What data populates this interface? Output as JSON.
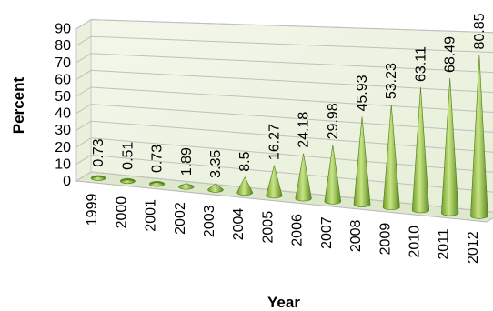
{
  "chart_data": {
    "type": "bar",
    "style": "3d-cone",
    "categories": [
      "1999",
      "2000",
      "2001",
      "2002",
      "2003",
      "2004",
      "2005",
      "2006",
      "2007",
      "2008",
      "2009",
      "2010",
      "2011",
      "2012"
    ],
    "values": [
      0.73,
      0.51,
      0.73,
      1.89,
      3.35,
      8.5,
      16.27,
      24.18,
      29.98,
      45.93,
      53.23,
      63.11,
      68.49,
      80.85
    ],
    "data_labels": [
      "0.73",
      "0.51",
      "0.73",
      "1.89",
      "3.35",
      "8.5",
      "16.27",
      "24.18",
      "29.98",
      "45.93",
      "53.23",
      "63.11",
      "68.49",
      "80.85"
    ],
    "title": "",
    "xlabel": "Year",
    "ylabel": "Percent",
    "ylim": [
      0,
      90
    ],
    "yticks": [
      "0",
      "10",
      "20",
      "30",
      "40",
      "50",
      "60",
      "70",
      "80",
      "90"
    ],
    "grid": true,
    "legend": "none",
    "colors": {
      "cone": "#8fbf3a",
      "cone_light": "#c9e585",
      "cone_dark": "#5a8a1f",
      "wall": "#eef4e3",
      "floor": "#dde8cc",
      "grid": "#bfbfbf"
    }
  }
}
